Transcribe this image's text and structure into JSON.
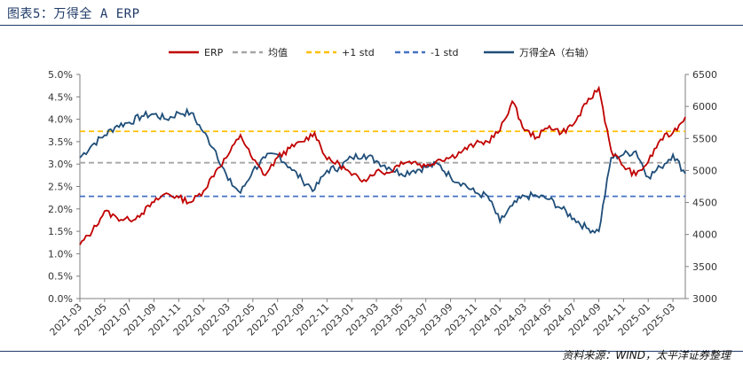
{
  "header": {
    "title": "图表5：万得全 A ERP"
  },
  "footer": {
    "source": "资料来源：WIND，太平洋证券整理"
  },
  "colors": {
    "erp": "#c00000",
    "index": "#1f4e79",
    "mean": "#a6a6a6",
    "plus1": "#ffc000",
    "minus1": "#4472c4",
    "axis": "#7f7f7f"
  },
  "chart_data": {
    "type": "line",
    "legend": [
      "ERP",
      "均值",
      "+1 std",
      "-1 std",
      "万得全A（右轴）"
    ],
    "legend_position": "top",
    "y_left": {
      "ticks": [
        "0.0%",
        "0.5%",
        "1.0%",
        "1.5%",
        "2.0%",
        "2.5%",
        "3.0%",
        "3.5%",
        "4.0%",
        "4.5%",
        "5.0%"
      ],
      "lim": [
        0,
        5
      ]
    },
    "y_right": {
      "ticks": [
        "3000",
        "3500",
        "4000",
        "4500",
        "5000",
        "5500",
        "6000",
        "6500"
      ],
      "lim": [
        3000,
        6500
      ]
    },
    "x_ticks": [
      "2021-03",
      "2021-05",
      "2021-07",
      "2021-09",
      "2021-11",
      "2022-01",
      "2022-03",
      "2022-05",
      "2022-07",
      "2022-09",
      "2022-11",
      "2023-01",
      "2023-03",
      "2023-05",
      "2023-07",
      "2023-09",
      "2023-11",
      "2024-01",
      "2024-03",
      "2024-05",
      "2024-07",
      "2024-09",
      "2024-11",
      "2025-01",
      "2025-03"
    ],
    "x_range": [
      "2021-03",
      "2025-04"
    ],
    "grid": false,
    "reference_lines": {
      "mean": 3.03,
      "plus1_std": 3.73,
      "minus1_std": 2.28
    },
    "series": [
      {
        "name": "ERP",
        "axis": "left",
        "x": [
          "2021-03",
          "2021-04",
          "2021-05",
          "2021-06",
          "2021-07",
          "2021-08",
          "2021-09",
          "2021-10",
          "2021-11",
          "2021-12",
          "2022-01",
          "2022-02",
          "2022-03",
          "2022-04",
          "2022-05",
          "2022-06",
          "2022-07",
          "2022-08",
          "2022-09",
          "2022-10",
          "2022-11",
          "2022-12",
          "2023-01",
          "2023-02",
          "2023-03",
          "2023-04",
          "2023-05",
          "2023-06",
          "2023-07",
          "2023-08",
          "2023-09",
          "2023-10",
          "2023-11",
          "2023-12",
          "2024-01",
          "2024-02",
          "2024-03",
          "2024-04",
          "2024-05",
          "2024-06",
          "2024-07",
          "2024-08",
          "2024-09",
          "2024-10",
          "2024-11",
          "2024-12",
          "2025-01",
          "2025-02",
          "2025-03",
          "2025-04"
        ],
        "values": [
          1.2,
          1.5,
          1.95,
          1.8,
          1.75,
          1.9,
          2.15,
          2.35,
          2.25,
          2.15,
          2.4,
          2.85,
          3.2,
          3.65,
          3.1,
          2.75,
          3.15,
          3.35,
          3.5,
          3.7,
          3.1,
          3.0,
          2.75,
          2.65,
          2.85,
          2.8,
          3.05,
          3.05,
          2.95,
          3.1,
          3.15,
          3.3,
          3.45,
          3.5,
          3.75,
          4.4,
          3.75,
          3.6,
          3.85,
          3.7,
          3.9,
          4.35,
          4.7,
          3.3,
          2.95,
          2.75,
          3.05,
          3.55,
          3.7,
          4.05
        ]
      },
      {
        "name": "万得全A（右轴）",
        "axis": "right",
        "x": [
          "2021-03",
          "2021-04",
          "2021-05",
          "2021-06",
          "2021-07",
          "2021-08",
          "2021-09",
          "2021-10",
          "2021-11",
          "2021-12",
          "2022-01",
          "2022-02",
          "2022-03",
          "2022-04",
          "2022-05",
          "2022-06",
          "2022-07",
          "2022-08",
          "2022-09",
          "2022-10",
          "2022-11",
          "2022-12",
          "2023-01",
          "2023-02",
          "2023-03",
          "2023-04",
          "2023-05",
          "2023-06",
          "2023-07",
          "2023-08",
          "2023-09",
          "2023-10",
          "2023-11",
          "2023-12",
          "2024-01",
          "2024-02",
          "2024-03",
          "2024-04",
          "2024-05",
          "2024-06",
          "2024-07",
          "2024-08",
          "2024-09",
          "2024-10",
          "2024-11",
          "2024-12",
          "2025-01",
          "2025-02",
          "2025-03",
          "2025-04"
        ],
        "values": [
          5200,
          5400,
          5550,
          5700,
          5750,
          5850,
          5880,
          5800,
          5900,
          5900,
          5600,
          5300,
          4850,
          4650,
          5000,
          5200,
          5250,
          5050,
          4850,
          4700,
          5000,
          5050,
          5200,
          5250,
          5150,
          5050,
          4950,
          5000,
          5050,
          5100,
          4900,
          4800,
          4650,
          4600,
          4200,
          4450,
          4600,
          4600,
          4550,
          4400,
          4250,
          4100,
          4050,
          5200,
          5250,
          5300,
          4900,
          5050,
          5250,
          4950
        ]
      }
    ]
  }
}
